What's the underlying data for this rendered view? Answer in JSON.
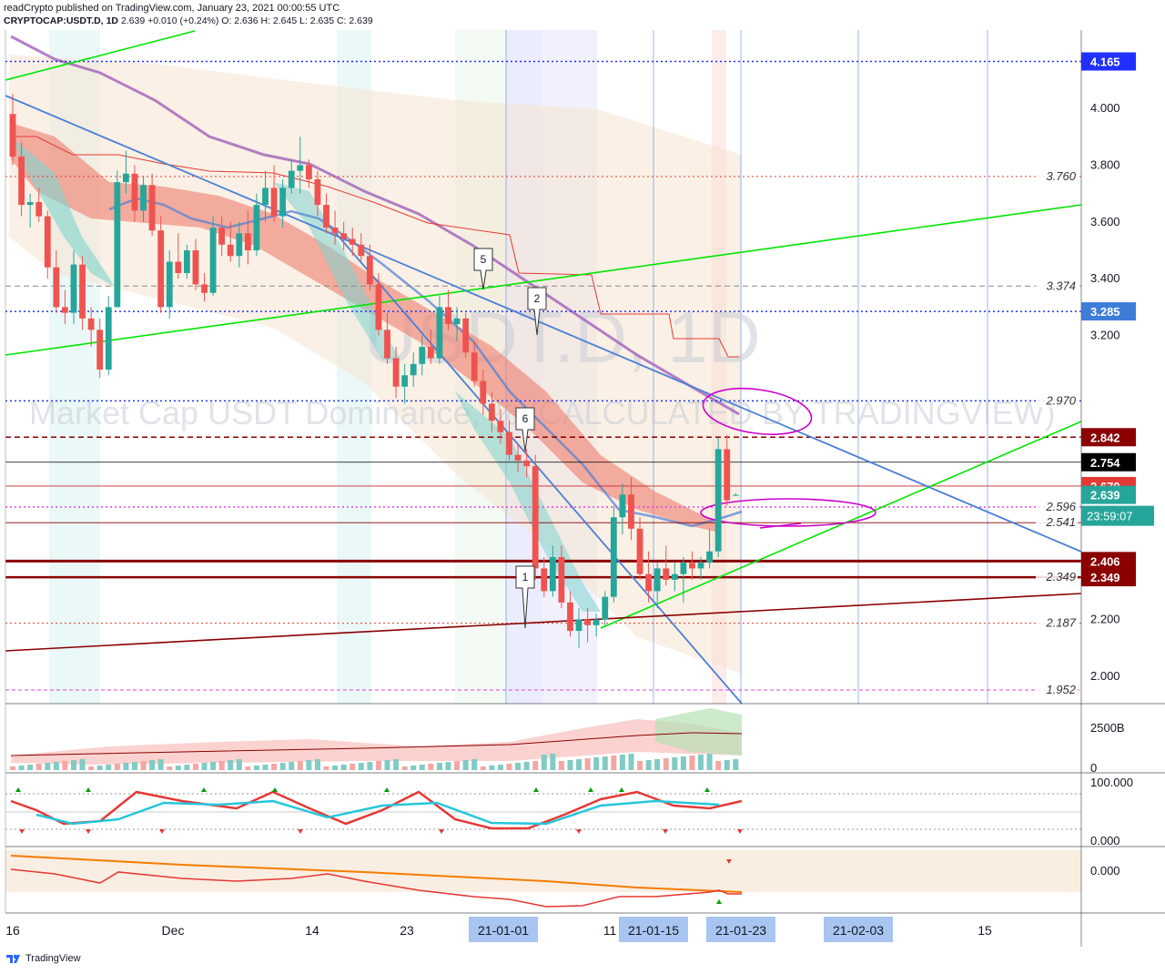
{
  "header": {
    "publisher_line": "readCrypto published on TradingView.com, January 23, 2021 00:00:55 UTC",
    "symbol": "CRYPTOCAP:USDT.D, 1D",
    "last": "2.639",
    "change": "+0.010 (+0.24%)",
    "ohlc": "O: 2.636 H: 2.645 L: 2.635 C: 2.639"
  },
  "watermark": {
    "symbol": "USDT.D, 1D",
    "name": "Market Cap USDT Dominance, % (CALCULATED BY TRADINGVIEW)"
  },
  "footer": {
    "brand": "TradingView"
  },
  "colors": {
    "up": "#26a69a",
    "down": "#ef5350",
    "green_line": "#00e600",
    "blue_line": "#4a7fd6",
    "maroon": "#8b0000",
    "purple_ma": "#9b59b6",
    "magenta": "#cc00cc"
  },
  "chart_data": [
    {
      "type": "candlestick",
      "panel": "price",
      "ylim": [
        1.9,
        4.3
      ],
      "y_ticks": [
        "2.000",
        "2.200",
        "3.200",
        "3.400",
        "3.600",
        "3.800",
        "4.000"
      ],
      "x_ticks": [
        "16",
        "Dec",
        "14",
        "23",
        "21-01-01",
        "11",
        "21-01-15",
        "21-01-23",
        "21-02-03",
        "15"
      ],
      "date_range": [
        "2020-11-16",
        "2021-01-23"
      ],
      "ohlc": [
        [
          3.98,
          4.05,
          3.8,
          3.83
        ],
        [
          3.83,
          3.88,
          3.62,
          3.66
        ],
        [
          3.66,
          3.7,
          3.58,
          3.67
        ],
        [
          3.67,
          3.72,
          3.6,
          3.62
        ],
        [
          3.62,
          3.64,
          3.4,
          3.44
        ],
        [
          3.44,
          3.5,
          3.28,
          3.3
        ],
        [
          3.3,
          3.36,
          3.24,
          3.28
        ],
        [
          3.28,
          3.5,
          3.24,
          3.45
        ],
        [
          3.45,
          3.48,
          3.22,
          3.26
        ],
        [
          3.26,
          3.3,
          3.16,
          3.22
        ],
        [
          3.22,
          3.26,
          3.05,
          3.08
        ],
        [
          3.08,
          3.34,
          3.06,
          3.3
        ],
        [
          3.3,
          3.78,
          3.3,
          3.74
        ],
        [
          3.74,
          3.85,
          3.7,
          3.77
        ],
        [
          3.77,
          3.8,
          3.6,
          3.64
        ],
        [
          3.64,
          3.76,
          3.6,
          3.73
        ],
        [
          3.73,
          3.77,
          3.55,
          3.57
        ],
        [
          3.57,
          3.62,
          3.28,
          3.3
        ],
        [
          3.3,
          3.5,
          3.26,
          3.46
        ],
        [
          3.46,
          3.56,
          3.4,
          3.42
        ],
        [
          3.42,
          3.52,
          3.4,
          3.5
        ],
        [
          3.5,
          3.54,
          3.36,
          3.38
        ],
        [
          3.38,
          3.42,
          3.32,
          3.35
        ],
        [
          3.35,
          3.62,
          3.34,
          3.58
        ],
        [
          3.58,
          3.62,
          3.48,
          3.52
        ],
        [
          3.52,
          3.6,
          3.46,
          3.48
        ],
        [
          3.48,
          3.6,
          3.44,
          3.56
        ],
        [
          3.56,
          3.64,
          3.45,
          3.5
        ],
        [
          3.5,
          3.7,
          3.48,
          3.66
        ],
        [
          3.66,
          3.78,
          3.6,
          3.72
        ],
        [
          3.72,
          3.8,
          3.6,
          3.62
        ],
        [
          3.62,
          3.75,
          3.58,
          3.72
        ],
        [
          3.72,
          3.82,
          3.7,
          3.78
        ],
        [
          3.78,
          3.9,
          3.7,
          3.8
        ],
        [
          3.8,
          3.82,
          3.72,
          3.75
        ],
        [
          3.75,
          3.78,
          3.62,
          3.66
        ],
        [
          3.66,
          3.7,
          3.56,
          3.58
        ],
        [
          3.58,
          3.64,
          3.52,
          3.56
        ],
        [
          3.56,
          3.6,
          3.5,
          3.54
        ],
        [
          3.54,
          3.58,
          3.48,
          3.52
        ],
        [
          3.52,
          3.56,
          3.46,
          3.48
        ],
        [
          3.48,
          3.52,
          3.36,
          3.38
        ],
        [
          3.38,
          3.42,
          3.2,
          3.22
        ],
        [
          3.22,
          3.28,
          3.1,
          3.12
        ],
        [
          3.12,
          3.16,
          2.98,
          3.02
        ],
        [
          3.02,
          3.1,
          2.96,
          3.06
        ],
        [
          3.06,
          3.14,
          3.02,
          3.1
        ],
        [
          3.1,
          3.2,
          3.06,
          3.16
        ],
        [
          3.16,
          3.22,
          3.1,
          3.12
        ],
        [
          3.12,
          3.34,
          3.1,
          3.3
        ],
        [
          3.3,
          3.36,
          3.22,
          3.24
        ],
        [
          3.24,
          3.3,
          3.18,
          3.26
        ],
        [
          3.26,
          3.28,
          3.12,
          3.14
        ],
        [
          3.14,
          3.18,
          3.02,
          3.04
        ],
        [
          3.04,
          3.08,
          2.92,
          2.96
        ],
        [
          2.96,
          3.0,
          2.86,
          2.9
        ],
        [
          2.9,
          2.94,
          2.82,
          2.86
        ],
        [
          2.86,
          2.9,
          2.76,
          2.78
        ],
        [
          2.78,
          2.82,
          2.72,
          2.76
        ],
        [
          2.76,
          2.8,
          2.7,
          2.74
        ],
        [
          2.74,
          2.78,
          2.34,
          2.38
        ],
        [
          2.38,
          2.42,
          2.28,
          2.3
        ],
        [
          2.3,
          2.46,
          2.28,
          2.42
        ],
        [
          2.42,
          2.46,
          2.24,
          2.26
        ],
        [
          2.26,
          2.3,
          2.14,
          2.16
        ],
        [
          2.16,
          2.24,
          2.1,
          2.2
        ],
        [
          2.2,
          2.24,
          2.12,
          2.18
        ],
        [
          2.18,
          2.22,
          2.14,
          2.2
        ],
        [
          2.2,
          2.3,
          2.18,
          2.28
        ],
        [
          2.28,
          2.6,
          2.26,
          2.56
        ],
        [
          2.56,
          2.68,
          2.5,
          2.64
        ],
        [
          2.64,
          2.7,
          2.48,
          2.52
        ],
        [
          2.52,
          2.56,
          2.34,
          2.36
        ],
        [
          2.36,
          2.44,
          2.26,
          2.3
        ],
        [
          2.3,
          2.4,
          2.24,
          2.38
        ],
        [
          2.38,
          2.46,
          2.32,
          2.34
        ],
        [
          2.34,
          2.4,
          2.3,
          2.36
        ],
        [
          2.36,
          2.42,
          2.26,
          2.4
        ],
        [
          2.4,
          2.44,
          2.34,
          2.38
        ],
        [
          2.38,
          2.42,
          2.34,
          2.4
        ],
        [
          2.4,
          2.52,
          2.38,
          2.44
        ],
        [
          2.44,
          2.84,
          2.42,
          2.8
        ],
        [
          2.8,
          2.85,
          2.6,
          2.62
        ],
        [
          2.636,
          2.645,
          2.635,
          2.639
        ]
      ],
      "horizontal_levels": [
        "4.165",
        "3.760",
        "3.374",
        "3.285",
        "2.970",
        "2.842",
        "2.754",
        "2.670",
        "2.596",
        "2.541",
        "2.406",
        "2.349",
        "2.187",
        "1.952"
      ],
      "price_labels": [
        {
          "value": "4.165",
          "color": "#2130ff"
        },
        {
          "value": "3.285",
          "color": "#3d7dd8"
        },
        {
          "value": "2.842",
          "color": "#8b0000"
        },
        {
          "value": "2.754",
          "color": "#000000"
        },
        {
          "value": "2.670",
          "color": "#e53935"
        },
        {
          "value": "2.639",
          "color": "#26a69a"
        },
        {
          "value": "2.406",
          "color": "#8b0000"
        },
        {
          "value": "2.349",
          "color": "#8b0000"
        }
      ],
      "countdown": "23:59:07",
      "wave_labels": [
        "5",
        "2",
        "6",
        "1"
      ]
    },
    {
      "type": "bar",
      "panel": "volume",
      "y_ticks": [
        "2500B",
        "0"
      ]
    },
    {
      "type": "line",
      "panel": "stochastic",
      "y_ticks": [
        "100.000",
        "0.000"
      ]
    },
    {
      "type": "line",
      "panel": "oscillator",
      "y_ticks": [
        "0.000"
      ]
    }
  ]
}
